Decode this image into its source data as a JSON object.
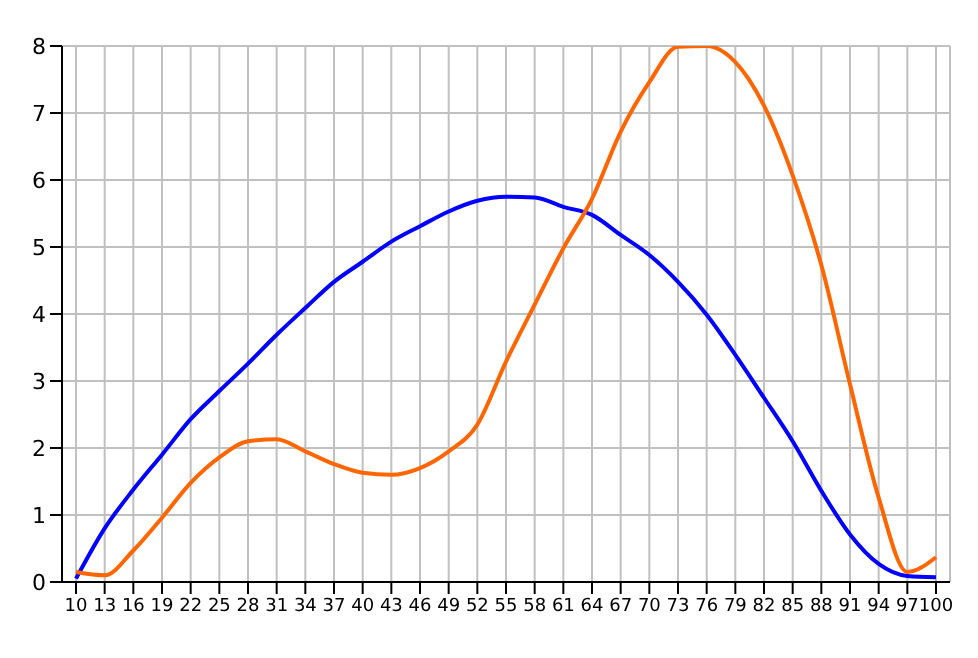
{
  "chart_data": {
    "type": "line",
    "categories": [
      "10",
      "13",
      "16",
      "19",
      "22",
      "25",
      "28",
      "31",
      "34",
      "37",
      "40",
      "43",
      "46",
      "49",
      "52",
      "55",
      "58",
      "61",
      "64",
      "67",
      "70",
      "73",
      "76",
      "79",
      "82",
      "85",
      "88",
      "91",
      "94",
      "97",
      "100"
    ],
    "series": [
      {
        "color": "#0000ff",
        "values": [
          0.05,
          0.8,
          1.38,
          1.9,
          2.43,
          2.85,
          3.26,
          3.69,
          4.09,
          4.48,
          4.78,
          5.08,
          5.31,
          5.53,
          5.69,
          5.75,
          5.74,
          5.6,
          5.48,
          5.18,
          4.88,
          4.48,
          3.99,
          3.39,
          2.75,
          2.1,
          1.36,
          0.71,
          0.27,
          0.09,
          0.07
        ]
      },
      {
        "color": "#ff6600",
        "values": [
          0.15,
          0.1,
          0.47,
          0.96,
          1.48,
          1.86,
          2.1,
          2.13,
          1.95,
          1.76,
          1.63,
          1.6,
          1.7,
          1.95,
          2.35,
          3.29,
          4.14,
          4.98,
          5.72,
          6.72,
          7.46,
          7.99,
          8,
          7.76,
          7.11,
          6.07,
          4.73,
          2.95,
          1.26,
          0.15,
          0.37
        ]
      }
    ],
    "ylim": [
      0,
      8
    ],
    "yticks": [
      0,
      1,
      2,
      3,
      4,
      5,
      6,
      7,
      8
    ],
    "grid": true,
    "legend": false,
    "marker": "none",
    "line_style": "solid"
  }
}
